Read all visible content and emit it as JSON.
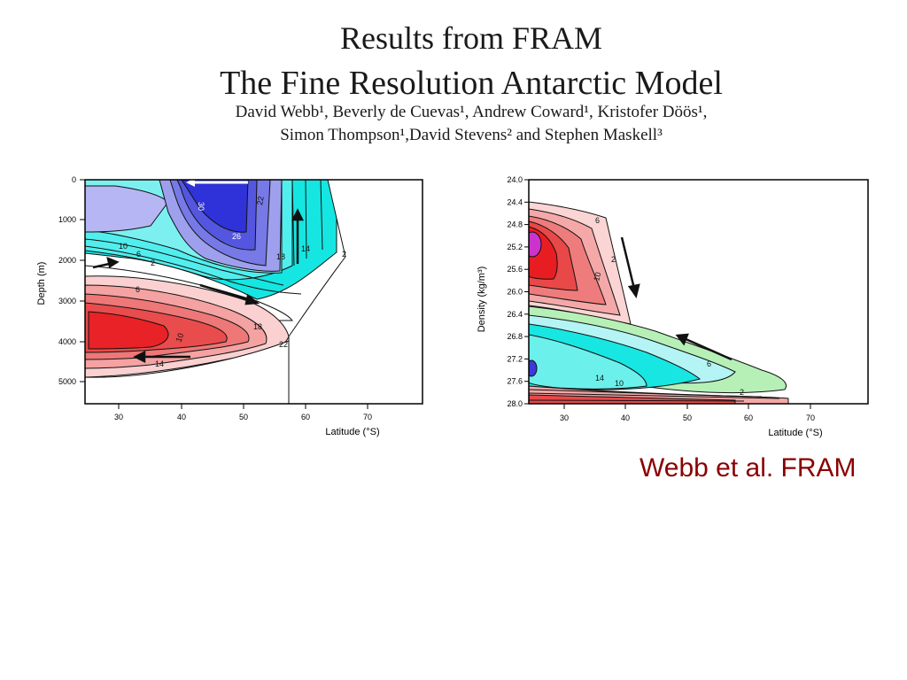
{
  "header": {
    "title_line1": "Results from FRAM",
    "title_line2": "The Fine Resolution Antarctic Model",
    "authors_line1": "David Webb¹, Beverly de Cuevas¹, Andrew Coward¹, Kristofer Döös¹,",
    "authors_line2": "Simon Thompson¹,David Stevens² and Stephen Maskell³"
  },
  "credit": "Webb et al. FRAM",
  "colors": {
    "credit": "#8b0000",
    "positive": "#e8262a",
    "negative": "#1f2bd8",
    "cyan": "#18e8e0"
  },
  "chart_data": [
    {
      "type": "heatmap",
      "xlabel": "Latitude (°S)",
      "ylabel": "Depth (m)",
      "xlim": [
        25,
        79
      ],
      "ylim": [
        0,
        5500
      ],
      "y_inverted": true,
      "x_ticks": [
        "30",
        "40",
        "50",
        "60",
        "70"
      ],
      "y_ticks": [
        "0",
        "1000",
        "2000",
        "3000",
        "4000",
        "5000"
      ],
      "contour_labels": [
        "30",
        "26",
        "22",
        "18",
        "14",
        "10",
        "6",
        "2",
        "2",
        "6",
        "10",
        "14",
        "18",
        "22"
      ],
      "x_values": [
        30,
        40,
        50,
        60,
        70
      ],
      "y_values": [
        0,
        1000,
        2000,
        3000,
        4000,
        5000
      ]
    },
    {
      "type": "heatmap",
      "xlabel": "Latitude (°S)",
      "ylabel": "Density (kg/m³)",
      "xlim": [
        25,
        79
      ],
      "ylim": [
        24.0,
        28.0
      ],
      "y_inverted": true,
      "x_ticks": [
        "30",
        "40",
        "50",
        "60",
        "70"
      ],
      "y_ticks": [
        "24.0",
        "24.4",
        "24.8",
        "25.2",
        "25.6",
        "26.0",
        "26.4",
        "26.8",
        "27.2",
        "27.6",
        "28.0"
      ],
      "contour_labels": [
        "10",
        "6",
        "2",
        "2",
        "6",
        "14",
        "10"
      ],
      "x_values": [
        30,
        40,
        50,
        60,
        70
      ],
      "y_values": [
        24.0,
        24.4,
        24.8,
        25.2,
        25.6,
        26.0,
        26.4,
        26.8,
        27.2,
        27.6,
        28.0
      ]
    }
  ]
}
